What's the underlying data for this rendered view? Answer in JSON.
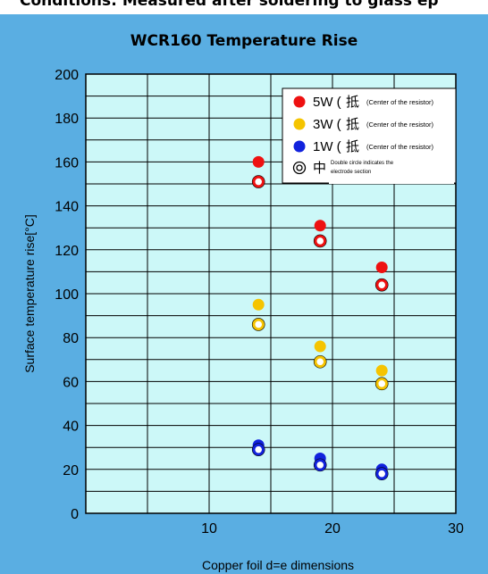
{
  "top_caption": "Conditions: Measured after soldering to glass ep",
  "chart_data": {
    "type": "scatter",
    "title": "WCR160 Temperature Rise",
    "xlabel": "Copper foil d=e dimensions",
    "ylabel": "Surface temperature rise[°C]",
    "xlim": [
      0,
      30
    ],
    "ylim": [
      0,
      200
    ],
    "x_ticks": [
      "10",
      "20",
      "30"
    ],
    "y_ticks": [
      "0",
      "20",
      "40",
      "60",
      "80",
      "100",
      "120",
      "140",
      "160",
      "180",
      "200"
    ],
    "grid": true,
    "legend_position": "top-right",
    "series": [
      {
        "name": "5W",
        "color": "#ee1111",
        "marker": "filled",
        "x": [
          14,
          19,
          24
        ],
        "y": [
          160,
          131,
          112
        ]
      },
      {
        "name": "5W",
        "color": "#ee1111",
        "marker": "double",
        "x": [
          14,
          19,
          24
        ],
        "y": [
          151,
          124,
          104
        ]
      },
      {
        "name": "3W",
        "color": "#f5c400",
        "marker": "filled",
        "x": [
          14,
          19,
          24
        ],
        "y": [
          95,
          76,
          65
        ]
      },
      {
        "name": "3W",
        "color": "#f5c400",
        "marker": "double",
        "x": [
          14,
          19,
          24
        ],
        "y": [
          86,
          69,
          59
        ]
      },
      {
        "name": "1W",
        "color": "#1122dd",
        "marker": "filled",
        "x": [
          14,
          19,
          24
        ],
        "y": [
          31,
          25,
          20
        ]
      },
      {
        "name": "1W",
        "color": "#1122dd",
        "marker": "double",
        "x": [
          14,
          19,
          24
        ],
        "y": [
          29,
          22,
          18
        ]
      }
    ],
    "legend": [
      {
        "label": "5W (",
        "glyph": "抵",
        "note": "(Center of the resistor)",
        "color": "#ee1111",
        "marker": "filled"
      },
      {
        "label": "3W (",
        "glyph": "抵",
        "note": "(Center of the resistor)",
        "color": "#f5c400",
        "marker": "filled"
      },
      {
        "label": "1W (",
        "glyph": "抵",
        "note": "(Center of the resistor)",
        "color": "#1122dd",
        "marker": "filled"
      },
      {
        "label": "中",
        "glyph": "",
        "note_lines": [
          "Double circle indicates the",
          "electrode section"
        ],
        "color": "#ffffff",
        "marker": "double-legend"
      }
    ],
    "colors": {
      "panel_bg": "#5aaee2",
      "plot_bg": "#ccf8f8",
      "grid": "#000000"
    }
  }
}
